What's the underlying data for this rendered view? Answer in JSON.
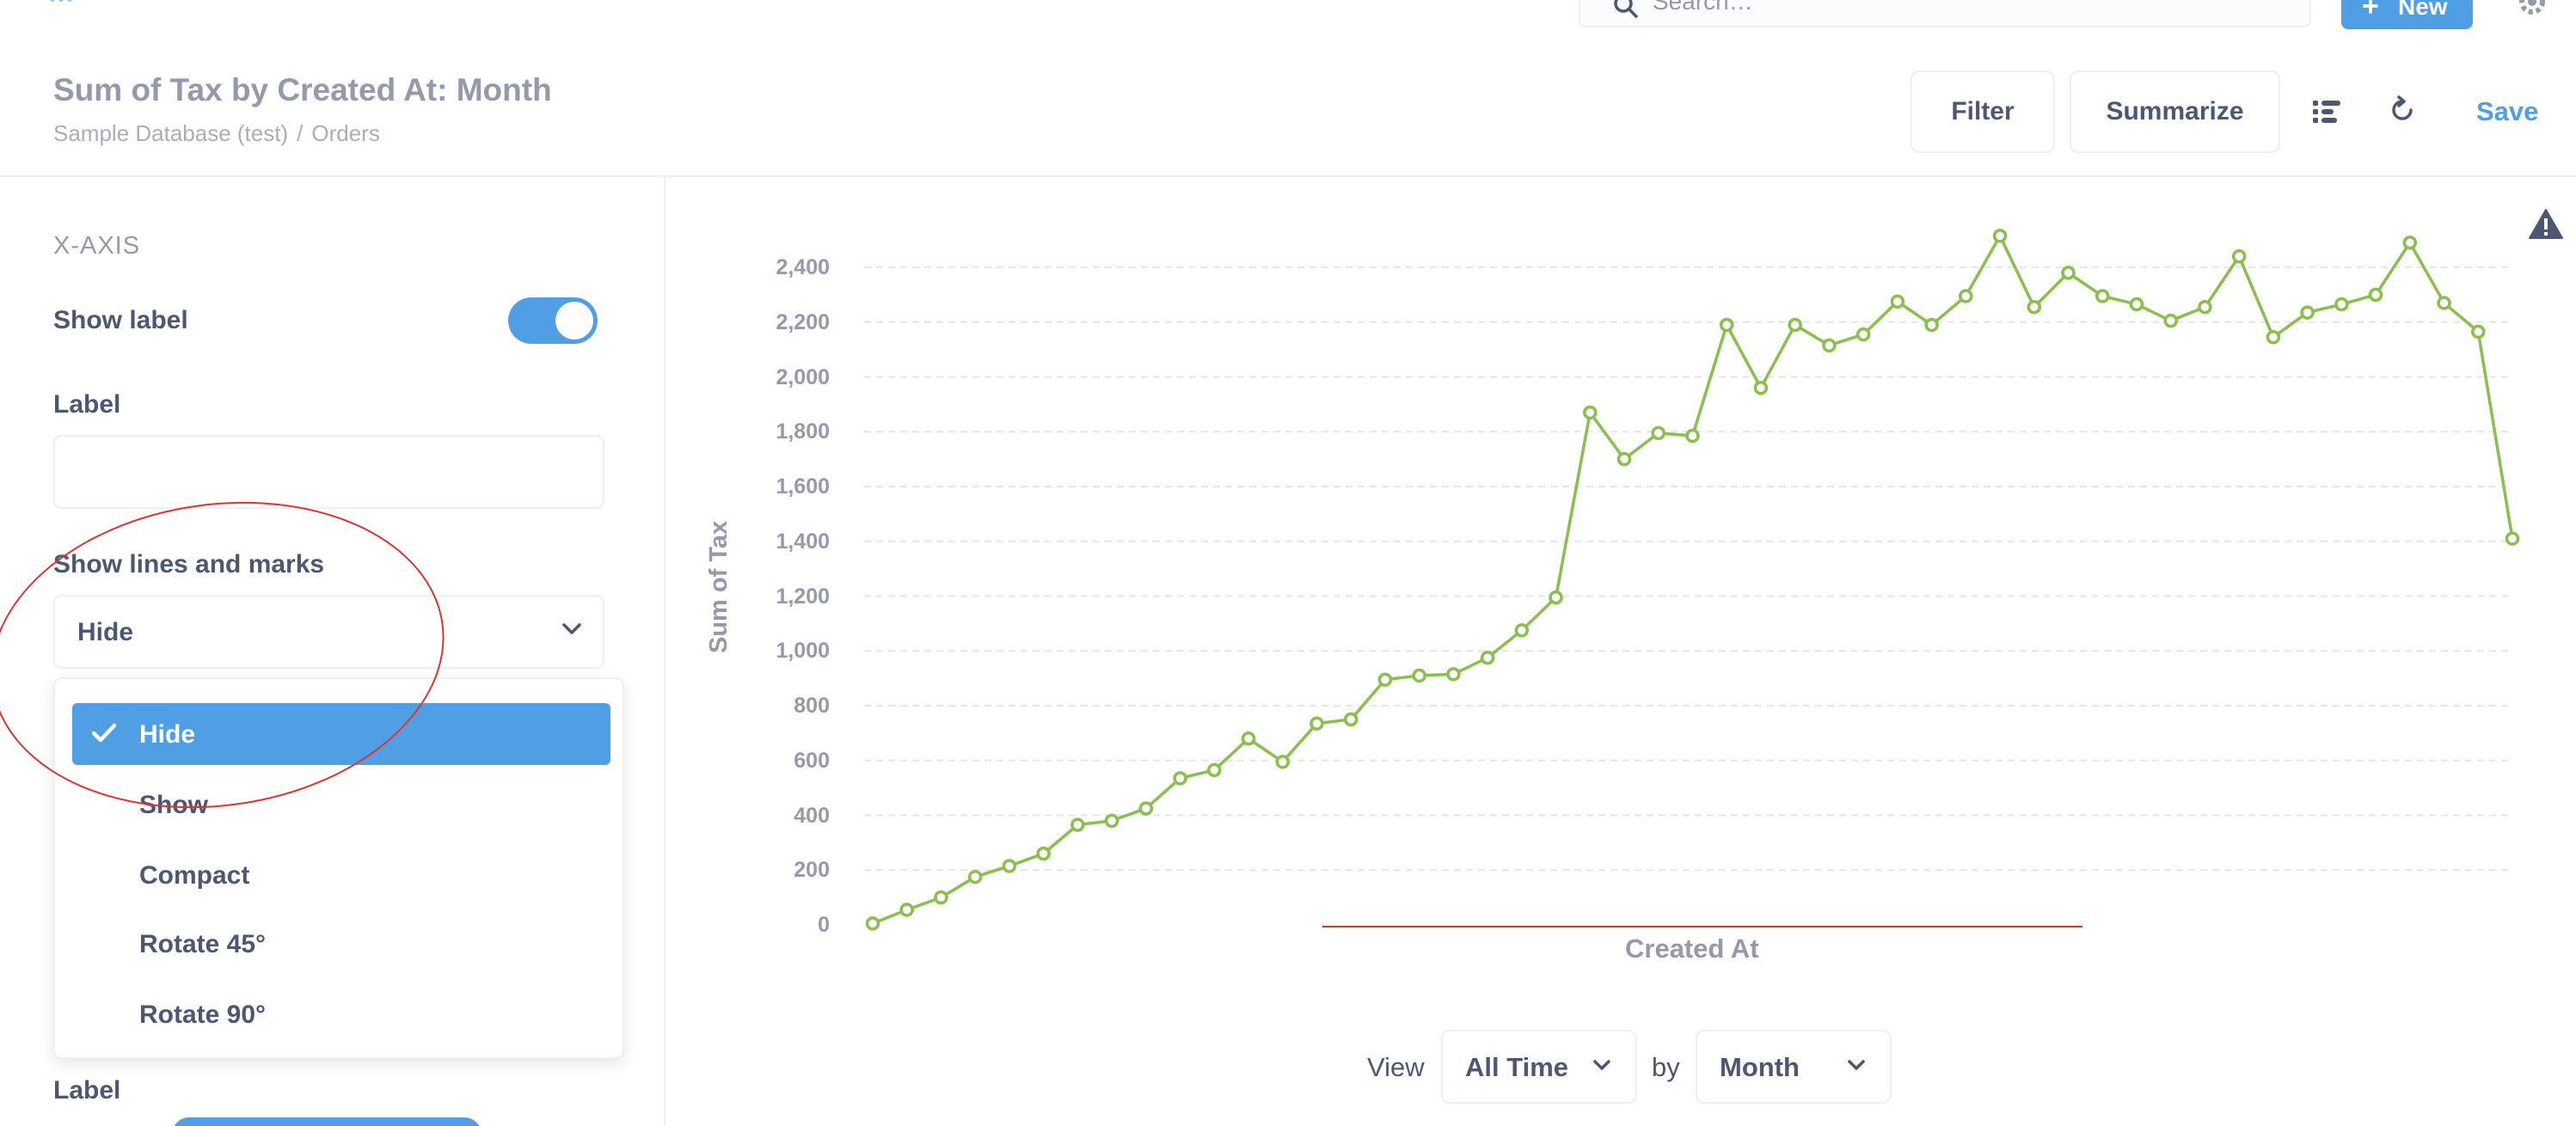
{
  "topbar": {
    "search_placeholder": "Search…",
    "new_label": "New"
  },
  "header": {
    "title": "Sum of Tax by Created At: Month",
    "breadcrumb": [
      "Sample Database (test)",
      "Orders"
    ],
    "breadcrumb_sep": "/",
    "filter_label": "Filter",
    "summarize_label": "Summarize",
    "save_label": "Save"
  },
  "settings": {
    "section": "X-AXIS",
    "show_label": "Show label",
    "show_label_on": true,
    "label_heading": "Label",
    "label_value": "",
    "lines_marks_heading": "Show lines and marks",
    "lines_marks_value": "Hide",
    "options": [
      {
        "label": "Hide",
        "selected": true
      },
      {
        "label": "Show",
        "selected": false
      },
      {
        "label": "Compact",
        "selected": false
      },
      {
        "label": "Rotate 45°",
        "selected": false
      },
      {
        "label": "Rotate 90°",
        "selected": false
      }
    ],
    "bottom_label": "Label"
  },
  "footer": {
    "view_label": "View",
    "view_value": "All Time",
    "by_label": "by",
    "by_value": "Month"
  },
  "colors": {
    "accent": "#509ee3",
    "line": "#88bf4d",
    "annotation": "#e0322e"
  },
  "chart_data": {
    "type": "line",
    "title": "",
    "xlabel": "Created At",
    "ylabel": "Sum of Tax",
    "xaxis_labels_hidden": true,
    "grid": true,
    "ylim": [
      0,
      2500
    ],
    "yticks": [
      0,
      200,
      400,
      600,
      800,
      1000,
      1200,
      1400,
      1600,
      1800,
      2000,
      2200,
      2400
    ],
    "series": [
      {
        "values": [
          5,
          55,
          100,
          175,
          215,
          260,
          365,
          380,
          425,
          535,
          565,
          680,
          595,
          735,
          750,
          895,
          910,
          915,
          975,
          1075,
          1195,
          1870,
          1700,
          1795,
          1785,
          2190,
          1960,
          2190,
          2115,
          2155,
          2275,
          2190,
          2295,
          2515,
          2255,
          2380,
          2295,
          2265,
          2205,
          2255,
          2440,
          2145,
          2235,
          2265,
          2300,
          2490,
          2270,
          2165,
          1410
        ]
      }
    ]
  }
}
